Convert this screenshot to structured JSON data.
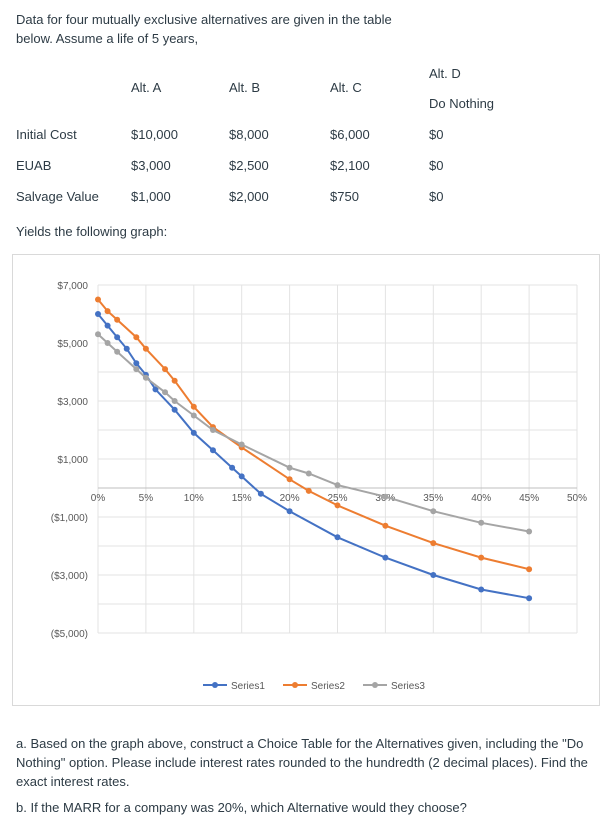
{
  "problem": {
    "intro": "Data for four mutually exclusive alternatives are given in the table below. Assume a life of 5 years,",
    "yields_text": "Yields the following graph:",
    "question_a": "a. Based on the graph above, construct a Choice Table for the Alternatives given, including the \"Do Nothing\" option. Please include interest rates rounded to the hundredth (2 decimal places). Find the exact interest rates.",
    "question_b": "b. If the MARR for a company was 20%, which Alternative would they choose?"
  },
  "table": {
    "headers": [
      "Alt. A",
      "Alt. B",
      "Alt. C",
      "Alt. D"
    ],
    "alt_d_subtitle": "Do Nothing",
    "rows": [
      {
        "label": "Initial Cost",
        "values": [
          "$10,000",
          "$8,000",
          "$6,000",
          "$0"
        ]
      },
      {
        "label": "EUAB",
        "values": [
          "$3,000",
          "$2,500",
          "$2,100",
          "$0"
        ]
      },
      {
        "label": "Salvage Value",
        "values": [
          "$1,000",
          "$2,000",
          "$750",
          "$0"
        ]
      }
    ]
  },
  "chart_data": {
    "type": "line",
    "title": "",
    "xlabel": "",
    "ylabel": "",
    "x_tick_labels": [
      "0%",
      "5%",
      "10%",
      "15%",
      "20%",
      "25%",
      "30%",
      "35%",
      "40%",
      "45%",
      "50%"
    ],
    "y_tick_labels": [
      "$7,000",
      "$5,000",
      "$3,000",
      "$1,000",
      "($1,000)",
      "($3,000)",
      "($5,000)"
    ],
    "y_tick_values": [
      7000,
      5000,
      3000,
      1000,
      -1000,
      -3000,
      -5000
    ],
    "xlim": [
      0,
      50
    ],
    "ylim": [
      -5000,
      7000
    ],
    "grid": true,
    "legend_position": "bottom",
    "series": [
      {
        "name": "Series1",
        "color": "#4472c4",
        "x": [
          0,
          1,
          2,
          3,
          4,
          5,
          6,
          8,
          10,
          12,
          14,
          15,
          17,
          20,
          25,
          30,
          35,
          40,
          45
        ],
        "y": [
          6000,
          5600,
          5200,
          4800,
          4300,
          3900,
          3400,
          2700,
          1900,
          1300,
          700,
          400,
          -200,
          -800,
          -1700,
          -2400,
          -3000,
          -3500,
          -3800
        ]
      },
      {
        "name": "Series2",
        "color": "#ed7d31",
        "x": [
          0,
          1,
          2,
          4,
          5,
          7,
          8,
          10,
          12,
          15,
          20,
          22,
          25,
          30,
          35,
          40,
          45
        ],
        "y": [
          6500,
          6100,
          5800,
          5200,
          4800,
          4100,
          3700,
          2800,
          2100,
          1400,
          300,
          -100,
          -600,
          -1300,
          -1900,
          -2400,
          -2800
        ]
      },
      {
        "name": "Series3",
        "color": "#a5a5a5",
        "x": [
          0,
          1,
          2,
          4,
          5,
          7,
          8,
          10,
          12,
          15,
          20,
          22,
          25,
          30,
          35,
          40,
          45
        ],
        "y": [
          5300,
          5000,
          4700,
          4100,
          3800,
          3300,
          3000,
          2500,
          2000,
          1500,
          700,
          500,
          100,
          -300,
          -800,
          -1200,
          -1500
        ]
      }
    ]
  }
}
